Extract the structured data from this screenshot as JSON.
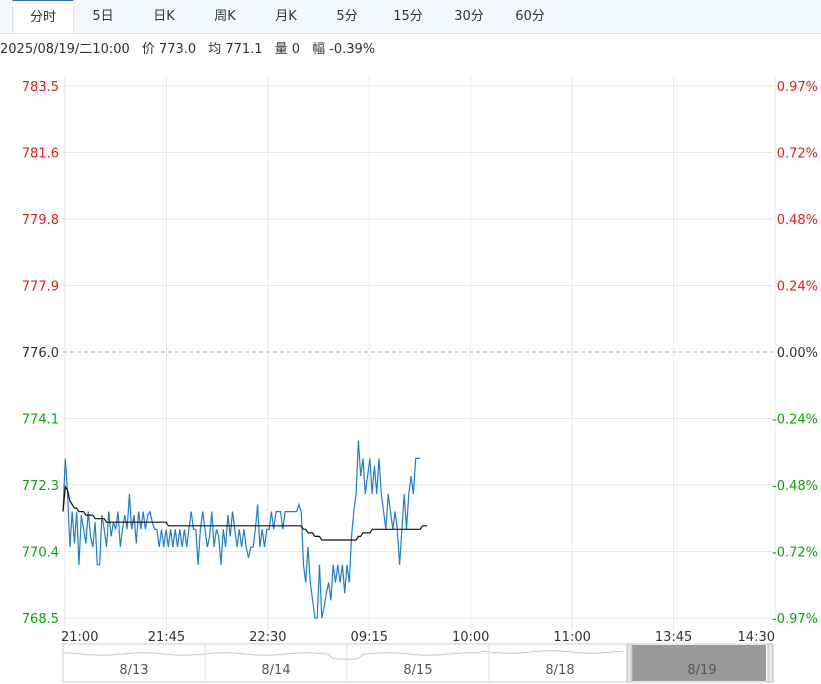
{
  "tabs": [
    {
      "label": "分时",
      "active": true
    },
    {
      "label": "5日",
      "active": false
    },
    {
      "label": "日K",
      "active": false
    },
    {
      "label": "周K",
      "active": false
    },
    {
      "label": "月K",
      "active": false
    },
    {
      "label": "5分",
      "active": false
    },
    {
      "label": "15分",
      "active": false
    },
    {
      "label": "30分",
      "active": false
    },
    {
      "label": "60分",
      "active": false
    }
  ],
  "info": {
    "datetime": "2025/08/19/二10:00",
    "price_label": "价",
    "price": "773.0",
    "avg_label": "均",
    "avg": "771.1",
    "vol_label": "量",
    "vol": "0",
    "chg_label": "幅",
    "chg": "-0.39%"
  },
  "colors": {
    "up": "#e02020",
    "down": "#12a012",
    "flat": "#333333",
    "price_line": "#1f7fc4",
    "avg_line": "#111111",
    "grid": "#e6e6e6"
  },
  "chart_data": {
    "type": "line",
    "base_price": 776.0,
    "y_labels_left": [
      "783.5",
      "781.6",
      "779.8",
      "777.9",
      "776.0",
      "774.1",
      "772.3",
      "770.4",
      "768.5"
    ],
    "y_labels_right": [
      "0.97%",
      "0.72%",
      "0.48%",
      "0.24%",
      "0.00%",
      "-0.24%",
      "-0.48%",
      "-0.72%",
      "-0.97%"
    ],
    "ylim": [
      768.5,
      783.5
    ],
    "x_tick_labels": [
      "21:00",
      "21:45",
      "22:30",
      "09:15",
      "10:00",
      "11:00",
      "13:45",
      "14:30"
    ],
    "x_minutes_total": 555,
    "series": [
      {
        "values": [
          771.5,
          773.0,
          772.0,
          770.5,
          771.5,
          770.6,
          771.5,
          770.0,
          771.4,
          771.0,
          770.6,
          771.5,
          770.8,
          770.5,
          771.2,
          770.0,
          770.0,
          771.4,
          771.0,
          770.5,
          771.5,
          770.8,
          771.2,
          771.0,
          771.5,
          770.5,
          771.0,
          771.4,
          771.0,
          772.0,
          771.0,
          771.4,
          770.6,
          771.5,
          771.0,
          771.5,
          771.0,
          771.4,
          771.5,
          771.2,
          771.0,
          771.0,
          770.5,
          771.0,
          770.5,
          771.0,
          770.5,
          771.0,
          770.5,
          771.0,
          770.5,
          771.0,
          770.5,
          771.0,
          770.5,
          771.0,
          771.5,
          771.0,
          771.0,
          770.0,
          771.0,
          771.5,
          771.0,
          770.5,
          770.8,
          771.5,
          770.5,
          771.0,
          770.8,
          770.0,
          771.0,
          770.5,
          771.4,
          770.8,
          771.5,
          771.0,
          770.5,
          771.0,
          770.5,
          771.0,
          770.5,
          770.2,
          770.5,
          770.5,
          771.0,
          771.7,
          770.5,
          771.0,
          770.5,
          771.0,
          771.0,
          771.5,
          771.0,
          771.5,
          771.5,
          771.5,
          771.0,
          771.5,
          771.5,
          771.5,
          771.5,
          771.5,
          771.5,
          771.7,
          771.5,
          770.0,
          769.5,
          770.5,
          769.5,
          769.0,
          768.5,
          768.5,
          770.0,
          768.5,
          768.8,
          769.2,
          769.5,
          769.0,
          770.0,
          769.5,
          770.0,
          769.5,
          770.0,
          769.2,
          770.0,
          769.5,
          770.8,
          771.5,
          772.0,
          773.5,
          772.5,
          773.0,
          772.0,
          772.5,
          773.0,
          772.0,
          772.8,
          772.0,
          773.0,
          772.0,
          771.5,
          771.0,
          772.0,
          771.5,
          771.0,
          771.5,
          771.0,
          770.0,
          771.0,
          772.0,
          771.0,
          772.0,
          772.5,
          772.0,
          773.0,
          773.0,
          773.0
        ],
        "avg_values": [
          771.5,
          772.2,
          772.1,
          771.8,
          771.7,
          771.6,
          771.6,
          771.5,
          771.5,
          771.5,
          771.4,
          771.4,
          771.4,
          771.4,
          771.3,
          771.3,
          771.3,
          771.3,
          771.3,
          771.2,
          771.2,
          771.2,
          771.2,
          771.2,
          771.2,
          771.2,
          771.2,
          771.2,
          771.2,
          771.2,
          771.2,
          771.2,
          771.2,
          771.2,
          771.2,
          771.2,
          771.2,
          771.2,
          771.2,
          771.2,
          771.2,
          771.2,
          771.2,
          771.2,
          771.2,
          771.2,
          771.1,
          771.1,
          771.1,
          771.1,
          771.1,
          771.1,
          771.1,
          771.1,
          771.1,
          771.1,
          771.1,
          771.1,
          771.1,
          771.1,
          771.1,
          771.1,
          771.1,
          771.1,
          771.1,
          771.1,
          771.1,
          771.1,
          771.1,
          771.1,
          771.1,
          771.1,
          771.1,
          771.1,
          771.1,
          771.1,
          771.1,
          771.1,
          771.1,
          771.1,
          771.1,
          771.1,
          771.1,
          771.1,
          771.1,
          771.1,
          771.1,
          771.1,
          771.1,
          771.1,
          771.1,
          771.1,
          771.1,
          771.1,
          771.1,
          771.1,
          771.1,
          771.1,
          771.1,
          771.1,
          771.1,
          771.1,
          771.1,
          771.1,
          771.1,
          771.0,
          771.0,
          770.9,
          770.9,
          770.9,
          770.8,
          770.8,
          770.8,
          770.7,
          770.7,
          770.7,
          770.7,
          770.7,
          770.7,
          770.7,
          770.7,
          770.7,
          770.7,
          770.7,
          770.7,
          770.7,
          770.7,
          770.7,
          770.7,
          770.8,
          770.8,
          770.9,
          770.9,
          770.9,
          770.9,
          771.0,
          771.0,
          771.0,
          771.0,
          771.0,
          771.0,
          771.0,
          771.0,
          771.0,
          771.0,
          771.0,
          771.0,
          771.0,
          771.0,
          771.0,
          771.0,
          771.0,
          771.0,
          771.0,
          771.0,
          771.0,
          771.0,
          771.1,
          771.1,
          771.1
        ]
      }
    ]
  },
  "navigator": {
    "dates": [
      "8/13",
      "8/14",
      "8/15",
      "8/18",
      "8/19"
    ]
  }
}
